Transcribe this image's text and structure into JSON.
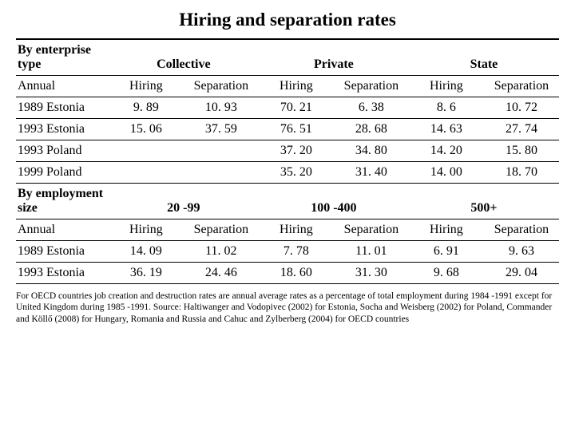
{
  "title": "Hiring and separation rates",
  "section1": {
    "heading": "By enterprise type",
    "groups": [
      "Collective",
      "Private",
      "State"
    ],
    "rowlabel": "Annual",
    "cols": [
      "Hiring",
      "Separation",
      "Hiring",
      "Separation",
      "Hiring",
      "Separation"
    ],
    "rows": [
      {
        "label": "1989 Estonia",
        "v": [
          "9. 89",
          "10. 93",
          "70. 21",
          "6. 38",
          "8. 6",
          "10. 72"
        ]
      },
      {
        "label": "1993 Estonia",
        "v": [
          "15. 06",
          "37. 59",
          "76. 51",
          "28. 68",
          "14. 63",
          "27. 74"
        ]
      },
      {
        "label": "1993 Poland",
        "v": [
          "",
          "",
          "37. 20",
          "34. 80",
          "14. 20",
          "15. 80"
        ]
      },
      {
        "label": "1999 Poland",
        "v": [
          "",
          "",
          "35. 20",
          "31. 40",
          "14. 00",
          "18. 70"
        ]
      }
    ]
  },
  "section2": {
    "heading": "By employment size",
    "groups": [
      "20 -99",
      "100 -400",
      "500+"
    ],
    "rowlabel": "Annual",
    "cols": [
      "Hiring",
      "Separation",
      "Hiring",
      "Separation",
      "Hiring",
      "Separation"
    ],
    "rows": [
      {
        "label": "1989 Estonia",
        "v": [
          "14. 09",
          "11. 02",
          "7. 78",
          "11. 01",
          "6. 91",
          "9. 63"
        ]
      },
      {
        "label": "1993 Estonia",
        "v": [
          "36. 19",
          "24. 46",
          "18. 60",
          "31. 30",
          "9. 68",
          "29. 04"
        ]
      }
    ]
  },
  "footnote": "For OECD countries job creation and destruction rates are annual average rates as a percentage of total employment during 1984 -1991 except for United Kingdom during 1985 -1991. Source: Haltiwanger and Vodopivec (2002) for Estonia, Socha and Weisberg (2002) for Poland,  Commander and Köllő (2008) for Hungary, Romania and Russia and Cahuc and  Zylberberg (2004) for OECD countries"
}
